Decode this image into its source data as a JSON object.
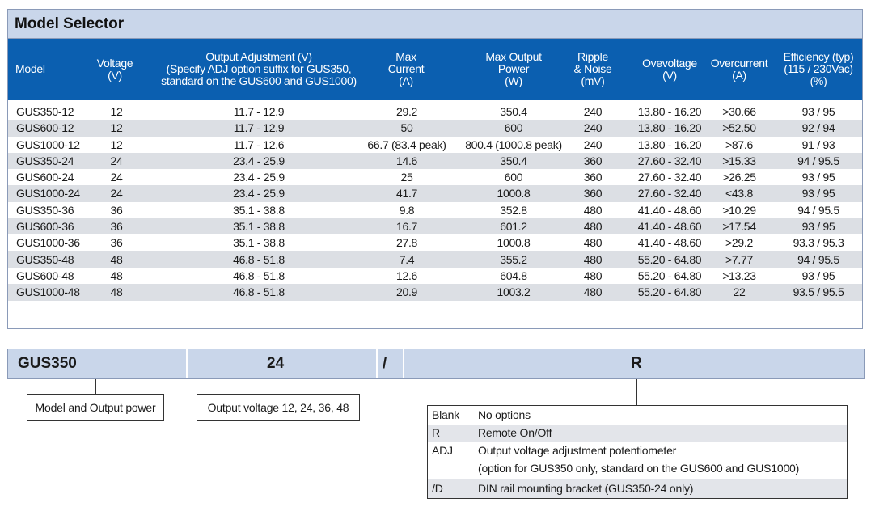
{
  "title": "Model Selector",
  "headers": [
    "Model",
    "Voltage\n(V)",
    "Output Adjustment (V)\n(Specify ADJ option suffix for GUS350,\nstandard on the GUS600 and GUS1000)",
    "Max\nCurrent\n(A)",
    "Max Output\nPower\n(W)",
    "Ripple\n& Noise\n(mV)",
    "Ovevoltage\n(V)",
    "Overcurrent\n(A)",
    "Efficiency (typ)\n(115 / 230Vac)\n(%)"
  ],
  "rows": [
    [
      "GUS350-12",
      "12",
      "11.7 - 12.9",
      "29.2",
      "350.4",
      "240",
      "13.80 - 16.20",
      ">30.66",
      "93 / 95"
    ],
    [
      "GUS600-12",
      "12",
      "11.7 - 12.9",
      "50",
      "600",
      "240",
      "13.80 - 16.20",
      ">52.50",
      "92 / 94"
    ],
    [
      "GUS1000-12",
      "12",
      "11.7 - 12.6",
      "66.7 (83.4 peak)",
      "800.4 (1000.8 peak)",
      "240",
      "13.80 - 16.20",
      ">87.6",
      "91 / 93"
    ],
    [
      "GUS350-24",
      "24",
      "23.4 - 25.9",
      "14.6",
      "350.4",
      "360",
      "27.60 - 32.40",
      ">15.33",
      "94 / 95.5"
    ],
    [
      "GUS600-24",
      "24",
      "23.4 - 25.9",
      "25",
      "600",
      "360",
      "27.60 - 32.40",
      ">26.25",
      "93 / 95"
    ],
    [
      "GUS1000-24",
      "24",
      "23.4 - 25.9",
      "41.7",
      "1000.8",
      "360",
      "27.60 - 32.40",
      "<43.8",
      "93 / 95"
    ],
    [
      "GUS350-36",
      "36",
      "35.1 - 38.8",
      "9.8",
      "352.8",
      "480",
      "41.40 - 48.60",
      ">10.29",
      "94 / 95.5"
    ],
    [
      "GUS600-36",
      "36",
      "35.1 - 38.8",
      "16.7",
      "601.2",
      "480",
      "41.40 - 48.60",
      ">17.54",
      "93 / 95"
    ],
    [
      "GUS1000-36",
      "36",
      "35.1 - 38.8",
      "27.8",
      "1000.8",
      "480",
      "41.40 - 48.60",
      ">29.2",
      "93.3 / 95.3"
    ],
    [
      "GUS350-48",
      "48",
      "46.8 - 51.8",
      "7.4",
      "355.2",
      "480",
      "55.20 - 64.80",
      ">7.77",
      "94 / 95.5"
    ],
    [
      "GUS600-48",
      "48",
      "46.8 - 51.8",
      "12.6",
      "604.8",
      "480",
      "55.20 - 64.80",
      ">13.23",
      "93 / 95"
    ],
    [
      "GUS1000-48",
      "48",
      "46.8 - 51.8",
      "20.9",
      "1003.2",
      "480",
      "55.20 - 64.80",
      "22",
      "93.5 / 95.5"
    ]
  ],
  "part_number": {
    "model": "GUS350",
    "voltage": "24",
    "separator": "/",
    "option": "R"
  },
  "legend": {
    "model_box": "Model and Output power",
    "voltage_box": "Output voltage 12, 24, 36, 48"
  },
  "options": [
    {
      "code": "Blank",
      "desc": "No options"
    },
    {
      "code": "R",
      "desc": "Remote On/Off"
    },
    {
      "code": "ADJ",
      "desc": "Output voltage adjustment potentiometer"
    },
    {
      "code": "",
      "desc": "(option for GUS350 only, standard on the GUS600 and GUS1000)"
    },
    {
      "code": "/D",
      "desc": "DIN rail mounting bracket (GUS350-24 only)"
    }
  ],
  "colors": {
    "header_blue": "#0b5fb0",
    "title_bar": "#c9d6ea",
    "row_shade": "#dcdfe4"
  }
}
